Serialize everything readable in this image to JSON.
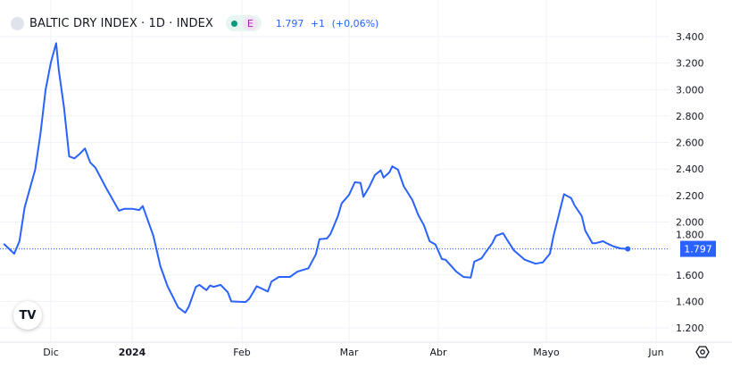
{
  "header": {
    "title": "BALTIC DRY INDEX · 1D · INDEX",
    "badge_letter": "E",
    "last": "1.797",
    "change": "+1",
    "change_pct": "(+0,06%)"
  },
  "colors": {
    "line": "#2962ff",
    "grid": "#f0f3fa",
    "status": "#089981"
  },
  "chart_data": {
    "type": "line",
    "title": "BALTIC DRY INDEX · 1D · INDEX",
    "ylim": [
      1.1,
      3.5
    ],
    "y_ticks": [
      "3.400",
      "3.200",
      "3.000",
      "2.800",
      "2.600",
      "2.400",
      "2.200",
      "2.000",
      "1.800",
      "1.600",
      "1.400",
      "1.200"
    ],
    "y_tick_values": [
      3.4,
      3.2,
      3.0,
      2.8,
      2.6,
      2.4,
      2.2,
      2.0,
      1.8,
      1.6,
      1.4,
      1.2
    ],
    "x_ticks": [
      {
        "label": "Dic",
        "date": "2023-12-01"
      },
      {
        "label": "2024",
        "date": "2024-01-01"
      },
      {
        "label": "Feb",
        "date": "2024-02-01"
      },
      {
        "label": "Mar",
        "date": "2024-03-01"
      },
      {
        "label": "Abr",
        "date": "2024-04-01"
      },
      {
        "label": "Mayo",
        "date": "2024-05-01"
      },
      {
        "label": "Jun",
        "date": "2024-06-01"
      }
    ],
    "grid": true,
    "last_value_label": "1.797",
    "points": [
      [
        "2023-11-13",
        1.835
      ],
      [
        "2023-11-17",
        1.76
      ],
      [
        "2023-11-19",
        1.855
      ],
      [
        "2023-11-21",
        2.11
      ],
      [
        "2023-11-25",
        2.395
      ],
      [
        "2023-11-27",
        2.665
      ],
      [
        "2023-11-29",
        3.0
      ],
      [
        "2023-12-01",
        3.205
      ],
      [
        "2023-12-03",
        3.35
      ],
      [
        "2023-12-04",
        3.15
      ],
      [
        "2023-12-06",
        2.865
      ],
      [
        "2023-12-08",
        2.495
      ],
      [
        "2023-12-10",
        2.48
      ],
      [
        "2023-12-12",
        2.515
      ],
      [
        "2023-12-14",
        2.555
      ],
      [
        "2023-12-16",
        2.45
      ],
      [
        "2023-12-18",
        2.41
      ],
      [
        "2023-12-22",
        2.26
      ],
      [
        "2023-12-27",
        2.085
      ],
      [
        "2023-12-29",
        2.1
      ],
      [
        "2024-01-01",
        2.1
      ],
      [
        "2024-01-03",
        2.09
      ],
      [
        "2024-01-04",
        2.12
      ],
      [
        "2024-01-05",
        2.045
      ],
      [
        "2024-01-07",
        1.895
      ],
      [
        "2024-01-09",
        1.665
      ],
      [
        "2024-01-11",
        1.515
      ],
      [
        "2024-01-14",
        1.355
      ],
      [
        "2024-01-16",
        1.315
      ],
      [
        "2024-01-17",
        1.36
      ],
      [
        "2024-01-19",
        1.51
      ],
      [
        "2024-01-20",
        1.525
      ],
      [
        "2024-01-22",
        1.485
      ],
      [
        "2024-01-23",
        1.52
      ],
      [
        "2024-01-24",
        1.51
      ],
      [
        "2024-01-26",
        1.525
      ],
      [
        "2024-01-28",
        1.47
      ],
      [
        "2024-01-29",
        1.4
      ],
      [
        "2024-02-02",
        1.395
      ],
      [
        "2024-02-03",
        1.42
      ],
      [
        "2024-02-05",
        1.515
      ],
      [
        "2024-02-08",
        1.475
      ],
      [
        "2024-02-09",
        1.55
      ],
      [
        "2024-02-11",
        1.585
      ],
      [
        "2024-02-14",
        1.585
      ],
      [
        "2024-02-16",
        1.625
      ],
      [
        "2024-02-19",
        1.65
      ],
      [
        "2024-02-21",
        1.755
      ],
      [
        "2024-02-22",
        1.87
      ],
      [
        "2024-02-24",
        1.875
      ],
      [
        "2024-02-25",
        1.91
      ],
      [
        "2024-02-27",
        2.045
      ],
      [
        "2024-02-28",
        2.14
      ],
      [
        "2024-03-01",
        2.205
      ],
      [
        "2024-03-03",
        2.3
      ],
      [
        "2024-03-05",
        2.295
      ],
      [
        "2024-03-06",
        2.19
      ],
      [
        "2024-03-08",
        2.265
      ],
      [
        "2024-03-10",
        2.355
      ],
      [
        "2024-03-12",
        2.39
      ],
      [
        "2024-03-13",
        2.335
      ],
      [
        "2024-03-15",
        2.375
      ],
      [
        "2024-03-16",
        2.42
      ],
      [
        "2024-03-18",
        2.395
      ],
      [
        "2024-03-20",
        2.27
      ],
      [
        "2024-03-23",
        2.165
      ],
      [
        "2024-03-25",
        2.055
      ],
      [
        "2024-03-27",
        1.975
      ],
      [
        "2024-03-29",
        1.855
      ],
      [
        "2024-03-31",
        1.83
      ],
      [
        "2024-04-02",
        1.72
      ],
      [
        "2024-04-03",
        1.715
      ],
      [
        "2024-04-06",
        1.625
      ],
      [
        "2024-04-08",
        1.585
      ],
      [
        "2024-04-10",
        1.58
      ],
      [
        "2024-04-11",
        1.7
      ],
      [
        "2024-04-13",
        1.725
      ],
      [
        "2024-04-14",
        1.765
      ],
      [
        "2024-04-16",
        1.84
      ],
      [
        "2024-04-17",
        1.895
      ],
      [
        "2024-04-19",
        1.915
      ],
      [
        "2024-04-20",
        1.87
      ],
      [
        "2024-04-22",
        1.785
      ],
      [
        "2024-04-25",
        1.715
      ],
      [
        "2024-04-28",
        1.685
      ],
      [
        "2024-04-30",
        1.695
      ],
      [
        "2024-05-02",
        1.76
      ],
      [
        "2024-05-03",
        1.89
      ],
      [
        "2024-05-05",
        2.105
      ],
      [
        "2024-05-06",
        2.21
      ],
      [
        "2024-05-08",
        2.18
      ],
      [
        "2024-05-09",
        2.125
      ],
      [
        "2024-05-11",
        2.045
      ],
      [
        "2024-05-12",
        1.935
      ],
      [
        "2024-05-14",
        1.84
      ],
      [
        "2024-05-15",
        1.84
      ],
      [
        "2024-05-17",
        1.855
      ],
      [
        "2024-05-18",
        1.84
      ],
      [
        "2024-05-20",
        1.815
      ],
      [
        "2024-05-22",
        1.8
      ],
      [
        "2024-05-24",
        1.797
      ]
    ]
  },
  "logo_text": "TV"
}
